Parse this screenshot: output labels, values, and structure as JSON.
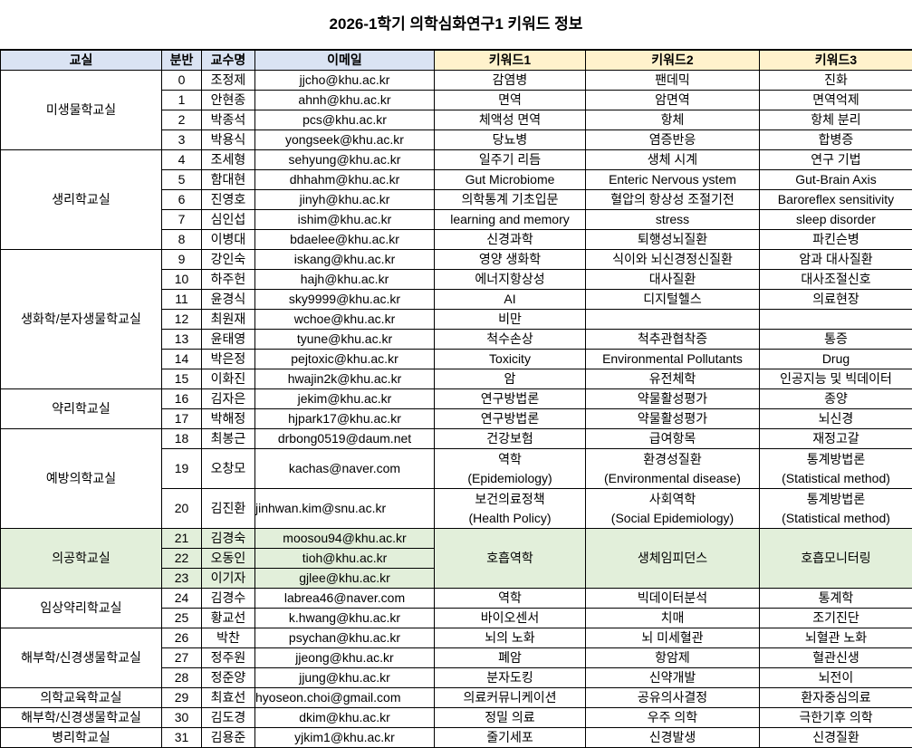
{
  "title": "2026-1학기 의학심화연구1 키워드 정보",
  "headers": [
    "교실",
    "분반",
    "교수명",
    "이메일",
    "키워드1",
    "키워드2",
    "키워드3"
  ],
  "colors": {
    "header_info": "#dae3f3",
    "header_keywords": "#fff2cc",
    "highlight_group": "#e2efda"
  },
  "groups": [
    {
      "room": "미생물학교실",
      "rows": [
        {
          "num": "0",
          "name": "조정제",
          "email": "jjcho@khu.ac.kr",
          "k1": "감염병",
          "k2": "팬데믹",
          "k3": "진화"
        },
        {
          "num": "1",
          "name": "안현종",
          "email": "ahnh@khu.ac.kr",
          "k1": "면역",
          "k2": "암면역",
          "k3": "면역억제"
        },
        {
          "num": "2",
          "name": "박종석",
          "email": "pcs@khu.ac.kr",
          "k1": "체액성 면역",
          "k2": "항체",
          "k3": "항체 분리"
        },
        {
          "num": "3",
          "name": "박용식",
          "email": "yongseek@khu.ac.kr",
          "k1": "당뇨병",
          "k2": "염증반응",
          "k3": "합병증"
        }
      ]
    },
    {
      "room": "생리학교실",
      "rows": [
        {
          "num": "4",
          "name": "조세형",
          "email": "sehyung@khu.ac.kr",
          "k1": "일주기 리듬",
          "k2": "생체 시계",
          "k3": "연구 기법"
        },
        {
          "num": "5",
          "name": "함대현",
          "email": "dhhahm@khu.ac.kr",
          "k1": "Gut Microbiome",
          "k2": "Enteric Nervous ystem",
          "k3": "Gut-Brain Axis"
        },
        {
          "num": "6",
          "name": "진영호",
          "email": "jinyh@khu.ac.kr",
          "k1": "의학통계 기초입문",
          "k2": "혈압의 항상성 조절기전",
          "k3": "Baroreflex sensitivity"
        },
        {
          "num": "7",
          "name": "심인섭",
          "email": "ishim@khu.ac.kr",
          "k1": "learning and memory",
          "k2": "stress",
          "k3": "sleep disorder"
        },
        {
          "num": "8",
          "name": "이병대",
          "email": "bdaelee@khu.ac.kr",
          "k1": "신경과학",
          "k2": "퇴행성뇌질환",
          "k3": "파킨슨병"
        }
      ]
    },
    {
      "room": "생화학/분자생물학교실",
      "rows": [
        {
          "num": "9",
          "name": "강인숙",
          "email": "iskang@khu.ac.kr",
          "k1": "영양 생화학",
          "k2": "식이와 뇌신경정신질환",
          "k3": "암과 대사질환"
        },
        {
          "num": "10",
          "name": "하주헌",
          "email": "hajh@khu.ac.kr",
          "k1": "에너지항상성",
          "k2": "대사질환",
          "k3": "대사조절신호"
        },
        {
          "num": "11",
          "name": "윤경식",
          "email": "sky9999@khu.ac.kr",
          "k1": "AI",
          "k2": "디지털헬스",
          "k3": "의료현장"
        },
        {
          "num": "12",
          "name": "최원재",
          "email": "wchoe@khu.ac.kr",
          "k1": "비만",
          "k2": "",
          "k3": ""
        },
        {
          "num": "13",
          "name": "윤태영",
          "email": "tyune@khu.ac.kr",
          "k1": "척수손상",
          "k2": "척추관협착증",
          "k3": "통증"
        },
        {
          "num": "14",
          "name": "박은정",
          "email": "pejtoxic@khu.ac.kr",
          "k1": "Toxicity",
          "k2": "Environmental Pollutants",
          "k3": "Drug"
        },
        {
          "num": "15",
          "name": "이화진",
          "email": "hwajin2k@khu.ac.kr",
          "k1": "암",
          "k2": "유전체학",
          "k3": "인공지능 및 빅데이터"
        }
      ]
    },
    {
      "room": "약리학교실",
      "rows": [
        {
          "num": "16",
          "name": "김자은",
          "email": "jekim@khu.ac.kr",
          "k1": "연구방법론",
          "k2": "약물활성평가",
          "k3": "종양"
        },
        {
          "num": "17",
          "name": "박해정",
          "email": "hjpark17@khu.ac.kr",
          "k1": "연구방법론",
          "k2": "약물활성평가",
          "k3": "뇌신경"
        }
      ]
    },
    {
      "room": "예방의학교실",
      "rows": [
        {
          "num": "18",
          "name": "최봉근",
          "email": "drbong0519@daum.net",
          "k1": "건강보험",
          "k2": "급여항목",
          "k3": "재정고갈"
        },
        {
          "num": "19",
          "name": "오창모",
          "email": "kachas@naver.com",
          "k1": "역학\n(Epidemiology)",
          "k2": "환경성질환\n(Environmental disease)",
          "k3": "통계방법론\n(Statistical method)"
        },
        {
          "num": "20",
          "name": "김진환",
          "email": "jinhwan.kim@snu.ac.kr",
          "k1": "보건의료정책\n(Health Policy)",
          "k2": "사회역학\n(Social Epidemiology)",
          "k3": "통계방법론\n(Statistical method)"
        }
      ]
    },
    {
      "room": "의공학교실",
      "highlight": true,
      "shared": {
        "k1": "호흡역학",
        "k2": "생체임피던스",
        "k3": "호흡모니터링"
      },
      "rows": [
        {
          "num": "21",
          "name": "김경숙",
          "email": "moosou94@khu.ac.kr"
        },
        {
          "num": "22",
          "name": "오동인",
          "email": "tioh@khu.ac.kr"
        },
        {
          "num": "23",
          "name": "이기자",
          "email": "gjlee@khu.ac.kr"
        }
      ]
    },
    {
      "room": "임상약리학교실",
      "rows": [
        {
          "num": "24",
          "name": "김경수",
          "email": "labrea46@naver.com",
          "k1": "역학",
          "k2": "빅데이터분석",
          "k3": "통계학"
        },
        {
          "num": "25",
          "name": "황교선",
          "email": "k.hwang@khu.ac.kr",
          "k1": "바이오센서",
          "k2": "치매",
          "k3": "조기진단"
        }
      ]
    },
    {
      "room": "해부학/신경생물학교실",
      "rows": [
        {
          "num": "26",
          "name": "박찬",
          "email": "psychan@khu.ac.kr",
          "k1": "뇌의 노화",
          "k2": "뇌 미세혈관",
          "k3": "뇌혈관 노화"
        },
        {
          "num": "27",
          "name": "정주원",
          "email": "jjeong@khu.ac.kr",
          "k1": "폐암",
          "k2": "항암제",
          "k3": "혈관신생"
        },
        {
          "num": "28",
          "name": "정준양",
          "email": "jjung@khu.ac.kr",
          "k1": "분자도킹",
          "k2": "신약개발",
          "k3": "뇌전이"
        }
      ]
    },
    {
      "room": "의학교육학교실",
      "rows": [
        {
          "num": "29",
          "name": "최효선",
          "email": "hyoseon.choi@gmail.com",
          "k1": "의료커뮤니케이션",
          "k2": "공유의사결정",
          "k3": "환자중심의료"
        }
      ]
    },
    {
      "room": "해부학/신경생물학교실",
      "rows": [
        {
          "num": "30",
          "name": "김도경",
          "email": "dkim@khu.ac.kr",
          "k1": "정밀 의료",
          "k2": "우주 의학",
          "k3": "극한기후 의학"
        }
      ]
    },
    {
      "room": "병리학교실",
      "rows": [
        {
          "num": "31",
          "name": "김용준",
          "email": "yjkim1@khu.ac.kr",
          "k1": "줄기세포",
          "k2": "신경발생",
          "k3": "신경질환"
        }
      ]
    }
  ]
}
